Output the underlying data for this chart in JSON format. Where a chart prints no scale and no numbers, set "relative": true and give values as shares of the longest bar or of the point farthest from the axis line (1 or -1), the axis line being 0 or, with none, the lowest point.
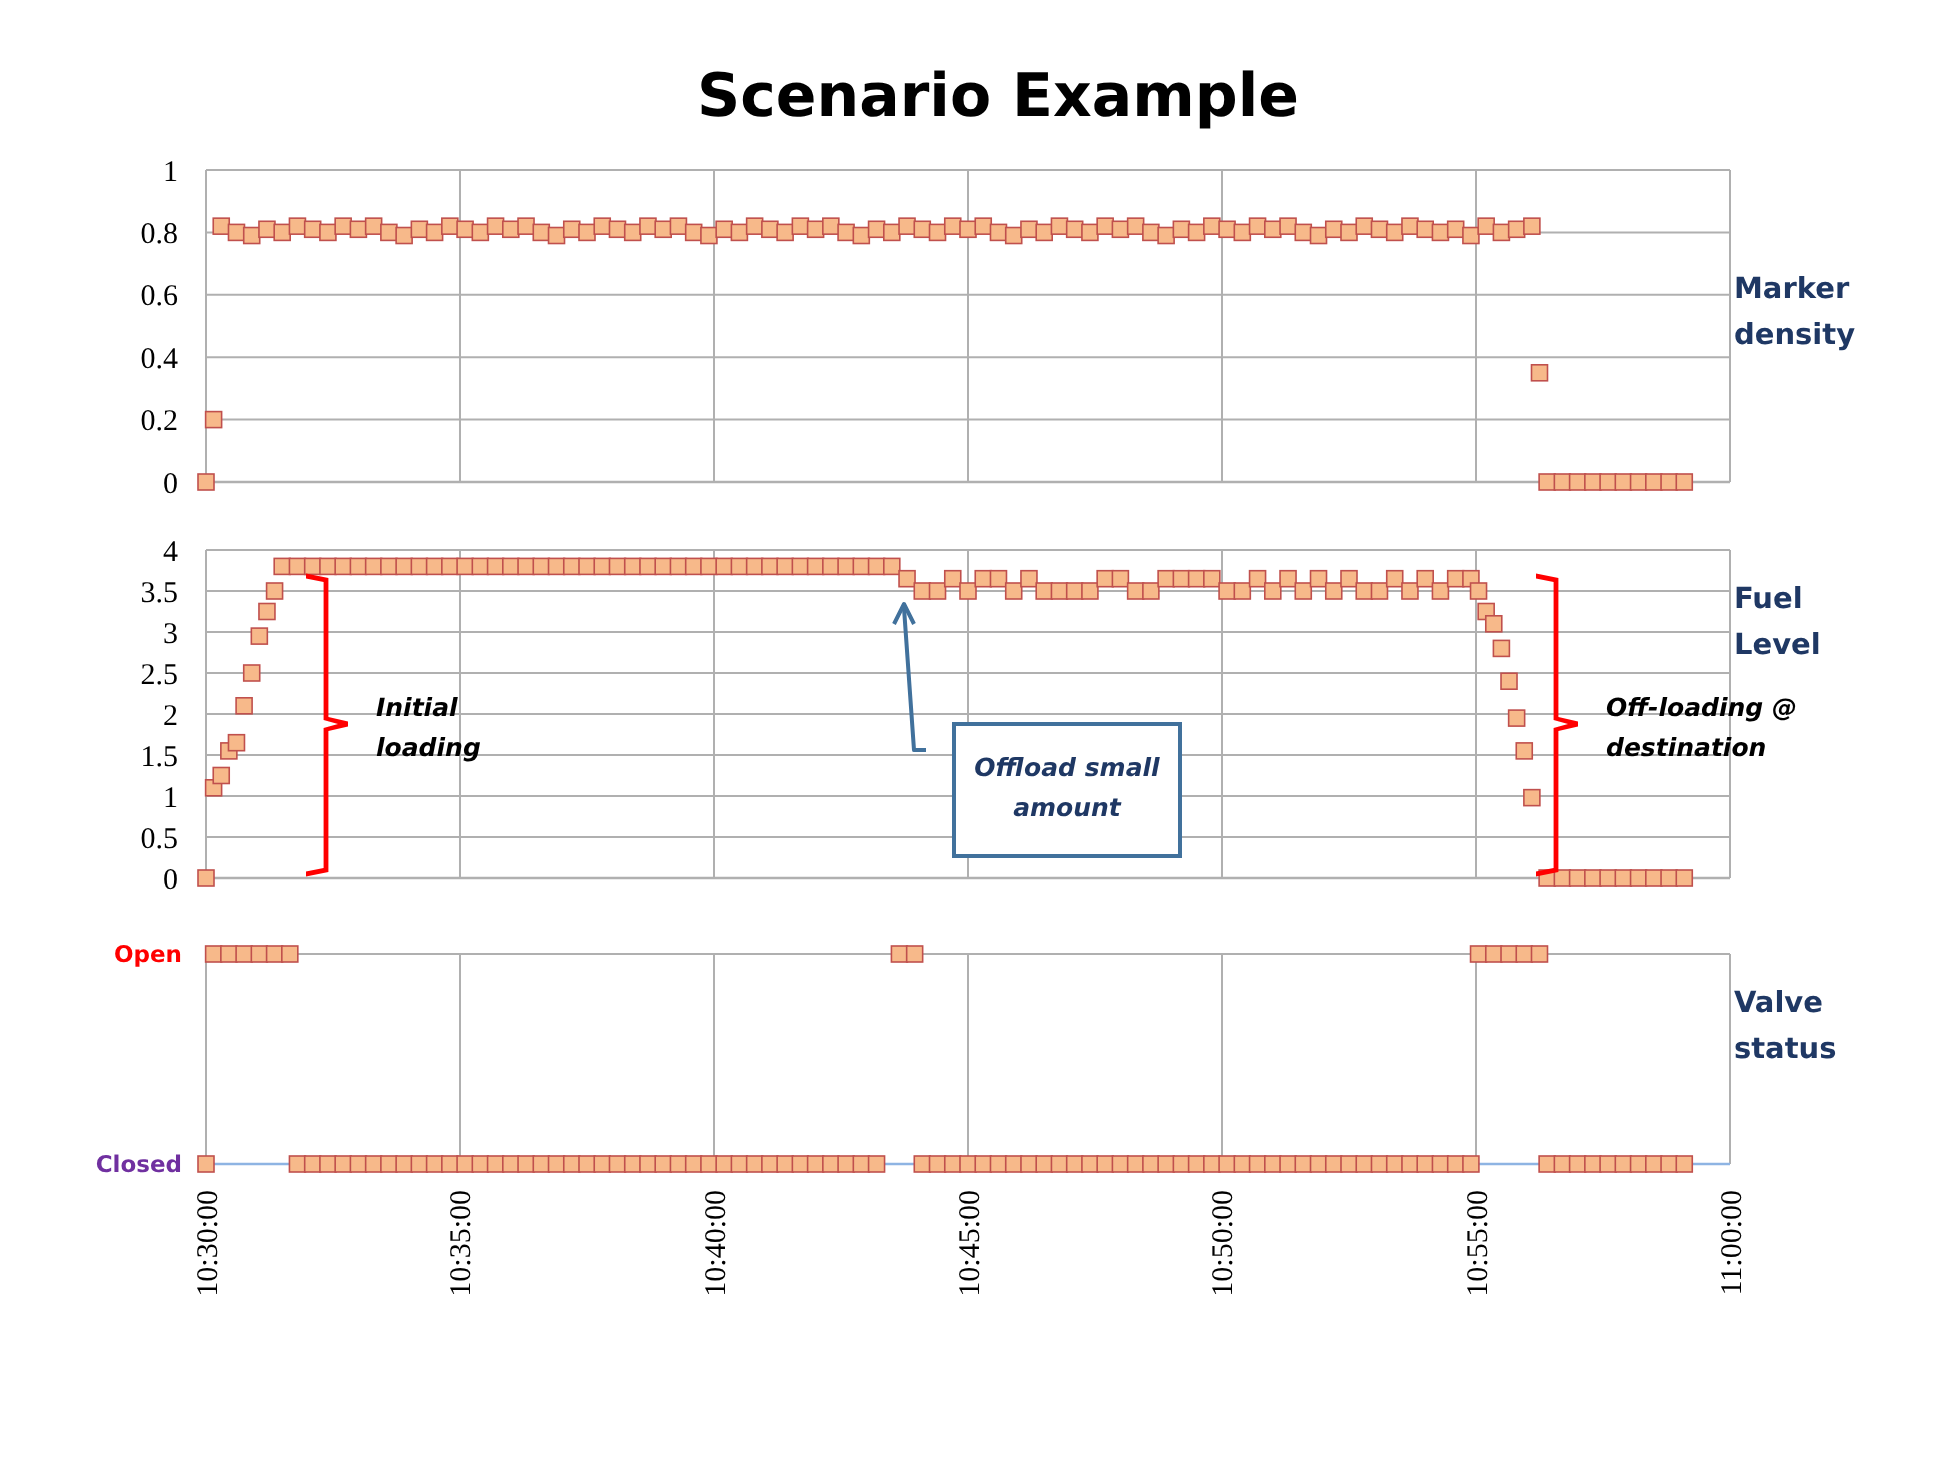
{
  "chart_data": [
    {
      "type": "scatter",
      "title": "Scenario Example",
      "ylabel": "Marker density",
      "marker": "square",
      "grid": true,
      "tick_labels": "y",
      "xlim": [
        10.5,
        11
      ],
      "ylim": [
        0,
        1
      ],
      "xticks": [
        {
          "value": 10.5,
          "label": null
        },
        {
          "value": 10.58333,
          "label": null
        },
        {
          "value": 10.66667,
          "label": null
        },
        {
          "value": 10.75,
          "label": null
        },
        {
          "value": 10.83333,
          "label": null
        },
        {
          "value": 10.91667,
          "label": null
        },
        {
          "value": 11,
          "label": null
        }
      ],
      "yticks": [
        0,
        0.2,
        0.4,
        0.6,
        0.8,
        1
      ],
      "series": [
        {
          "color": "#f7b98a",
          "x": [
            10.5,
            10.5025,
            10.505,
            10.51,
            10.515,
            10.52,
            10.525,
            10.53,
            10.535,
            10.54,
            10.545,
            10.55,
            10.555,
            10.56,
            10.565,
            10.57,
            10.575,
            10.58,
            10.585,
            10.59,
            10.595,
            10.6,
            10.605,
            10.61,
            10.615,
            10.62,
            10.625,
            10.63,
            10.635,
            10.64,
            10.645,
            10.65,
            10.655,
            10.66,
            10.665,
            10.67,
            10.675,
            10.68,
            10.685,
            10.69,
            10.695,
            10.7,
            10.705,
            10.71,
            10.715,
            10.72,
            10.725,
            10.73,
            10.735,
            10.74,
            10.745,
            10.75,
            10.755,
            10.76,
            10.765,
            10.77,
            10.775,
            10.78,
            10.785,
            10.79,
            10.795,
            10.8,
            10.805,
            10.81,
            10.815,
            10.82,
            10.825,
            10.83,
            10.835,
            10.84,
            10.845,
            10.85,
            10.855,
            10.86,
            10.865,
            10.87,
            10.875,
            10.88,
            10.885,
            10.89,
            10.895,
            10.9,
            10.905,
            10.91,
            10.915,
            10.92,
            10.925,
            10.93,
            10.935,
            10.9375,
            10.94,
            10.945,
            10.95,
            10.955,
            10.96,
            10.965,
            10.97,
            10.975,
            10.98,
            10.985
          ],
          "values": [
            0,
            0.2,
            0.82,
            0.8,
            0.79,
            0.81,
            0.8,
            0.82,
            0.81,
            0.8,
            0.82,
            0.81,
            0.82,
            0.8,
            0.79,
            0.81,
            0.8,
            0.82,
            0.81,
            0.8,
            0.82,
            0.81,
            0.82,
            0.8,
            0.79,
            0.81,
            0.8,
            0.82,
            0.81,
            0.8,
            0.82,
            0.81,
            0.82,
            0.8,
            0.79,
            0.81,
            0.8,
            0.82,
            0.81,
            0.8,
            0.82,
            0.81,
            0.82,
            0.8,
            0.79,
            0.81,
            0.8,
            0.82,
            0.81,
            0.8,
            0.82,
            0.81,
            0.82,
            0.8,
            0.79,
            0.81,
            0.8,
            0.82,
            0.81,
            0.8,
            0.82,
            0.81,
            0.82,
            0.8,
            0.79,
            0.81,
            0.8,
            0.82,
            0.81,
            0.8,
            0.82,
            0.81,
            0.82,
            0.8,
            0.79,
            0.81,
            0.8,
            0.82,
            0.81,
            0.8,
            0.82,
            0.81,
            0.8,
            0.81,
            0.79,
            0.82,
            0.8,
            0.81,
            0.82,
            0.35,
            0,
            0,
            0,
            0,
            0,
            0,
            0,
            0,
            0,
            0
          ]
        }
      ]
    },
    {
      "type": "scatter",
      "ylabel": "Fuel Level",
      "marker": "square",
      "grid": true,
      "tick_labels": "y",
      "xlim": [
        10.5,
        11
      ],
      "ylim": [
        0,
        4
      ],
      "xticks": [
        {
          "value": 10.5,
          "label": null
        },
        {
          "value": 10.58333,
          "label": null
        },
        {
          "value": 10.66667,
          "label": null
        },
        {
          "value": 10.75,
          "label": null
        },
        {
          "value": 10.83333,
          "label": null
        },
        {
          "value": 10.91667,
          "label": null
        },
        {
          "value": 11,
          "label": null
        }
      ],
      "yticks": [
        0,
        0.5,
        1,
        1.5,
        2,
        2.5,
        3,
        3.5,
        4
      ],
      "annotations": [
        "Initial loading",
        "Offload small amount",
        "Off-loading @ destination"
      ],
      "series": [
        {
          "color": "#f7b98a",
          "x": [
            10.5,
            10.5025,
            10.505,
            10.5075,
            10.51,
            10.5125,
            10.515,
            10.5175,
            10.52,
            10.5225,
            10.525,
            10.53,
            10.535,
            10.54,
            10.545,
            10.55,
            10.555,
            10.56,
            10.565,
            10.57,
            10.575,
            10.58,
            10.585,
            10.59,
            10.595,
            10.6,
            10.605,
            10.61,
            10.615,
            10.62,
            10.625,
            10.63,
            10.635,
            10.64,
            10.645,
            10.65,
            10.655,
            10.66,
            10.665,
            10.67,
            10.675,
            10.68,
            10.685,
            10.69,
            10.695,
            10.7,
            10.705,
            10.71,
            10.715,
            10.72,
            10.725,
            10.73,
            10.735,
            10.74,
            10.745,
            10.75,
            10.755,
            10.76,
            10.765,
            10.77,
            10.775,
            10.78,
            10.785,
            10.79,
            10.795,
            10.8,
            10.805,
            10.81,
            10.815,
            10.82,
            10.825,
            10.83,
            10.835,
            10.84,
            10.845,
            10.85,
            10.855,
            10.86,
            10.865,
            10.87,
            10.875,
            10.88,
            10.885,
            10.89,
            10.895,
            10.9,
            10.905,
            10.91,
            10.915,
            10.9175,
            10.92,
            10.9225,
            10.925,
            10.9275,
            10.93,
            10.9325,
            10.935,
            10.94,
            10.945,
            10.95,
            10.955,
            10.96,
            10.965,
            10.97,
            10.975,
            10.98,
            10.985
          ],
          "values": [
            0,
            1.1,
            1.25,
            1.55,
            1.65,
            2.1,
            2.5,
            2.95,
            3.25,
            3.5,
            3.8,
            3.8,
            3.8,
            3.8,
            3.8,
            3.8,
            3.8,
            3.8,
            3.8,
            3.8,
            3.8,
            3.8,
            3.8,
            3.8,
            3.8,
            3.8,
            3.8,
            3.8,
            3.8,
            3.8,
            3.8,
            3.8,
            3.8,
            3.8,
            3.8,
            3.8,
            3.8,
            3.8,
            3.8,
            3.8,
            3.8,
            3.8,
            3.8,
            3.8,
            3.8,
            3.8,
            3.8,
            3.8,
            3.8,
            3.8,
            3.8,
            3.65,
            3.5,
            3.5,
            3.65,
            3.5,
            3.65,
            3.65,
            3.5,
            3.65,
            3.5,
            3.5,
            3.5,
            3.5,
            3.65,
            3.65,
            3.5,
            3.5,
            3.65,
            3.65,
            3.65,
            3.65,
            3.5,
            3.5,
            3.65,
            3.5,
            3.65,
            3.5,
            3.65,
            3.5,
            3.65,
            3.5,
            3.5,
            3.65,
            3.5,
            3.65,
            3.5,
            3.65,
            3.65,
            3.5,
            3.25,
            3.1,
            2.8,
            2.4,
            1.95,
            1.55,
            0.98,
            0,
            0,
            0,
            0,
            0,
            0,
            0,
            0,
            0,
            0
          ]
        }
      ]
    },
    {
      "type": "scatter",
      "ylabel": "Valve status",
      "marker": "square",
      "grid": true,
      "relative": true,
      "xlim": [
        10.5,
        11
      ],
      "y_categories": [
        "Open",
        "Closed"
      ],
      "xticks": [
        {
          "value": 10.5,
          "label": "10:30:00"
        },
        {
          "value": 10.58333,
          "label": "10:35:00"
        },
        {
          "value": 10.66667,
          "label": "10:40:00"
        },
        {
          "value": 10.75,
          "label": "10:45:00"
        },
        {
          "value": 10.83333,
          "label": "10:50:00"
        },
        {
          "value": 10.91667,
          "label": "10:55:00"
        },
        {
          "value": 11,
          "label": "11:00:00"
        }
      ],
      "series": [
        {
          "color": "#f7b98a",
          "x": [
            10.5,
            10.5025,
            10.5075,
            10.5125,
            10.5175,
            10.5225,
            10.5275,
            10.53,
            10.535,
            10.54,
            10.545,
            10.55,
            10.555,
            10.56,
            10.565,
            10.57,
            10.575,
            10.58,
            10.585,
            10.59,
            10.595,
            10.6,
            10.605,
            10.61,
            10.615,
            10.62,
            10.625,
            10.63,
            10.635,
            10.64,
            10.645,
            10.65,
            10.655,
            10.66,
            10.665,
            10.67,
            10.675,
            10.68,
            10.685,
            10.69,
            10.695,
            10.7,
            10.705,
            10.71,
            10.715,
            10.72,
            10.7275,
            10.7325,
            10.735,
            10.74,
            10.745,
            10.75,
            10.755,
            10.76,
            10.765,
            10.77,
            10.775,
            10.78,
            10.785,
            10.79,
            10.795,
            10.8,
            10.805,
            10.81,
            10.815,
            10.82,
            10.825,
            10.83,
            10.835,
            10.84,
            10.845,
            10.85,
            10.855,
            10.86,
            10.865,
            10.87,
            10.875,
            10.88,
            10.885,
            10.89,
            10.895,
            10.9,
            10.905,
            10.91,
            10.915,
            10.9175,
            10.9225,
            10.9275,
            10.9325,
            10.9375,
            10.94,
            10.945,
            10.95,
            10.955,
            10.96,
            10.965,
            10.97,
            10.975,
            10.98,
            10.985
          ],
          "values": [
            0,
            1,
            1,
            1,
            1,
            1,
            1,
            0,
            0,
            0,
            0,
            0,
            0,
            0,
            0,
            0,
            0,
            0,
            0,
            0,
            0,
            0,
            0,
            0,
            0,
            0,
            0,
            0,
            0,
            0,
            0,
            0,
            0,
            0,
            0,
            0,
            0,
            0,
            0,
            0,
            0,
            0,
            0,
            0,
            0,
            0,
            1,
            1,
            0,
            0,
            0,
            0,
            0,
            0,
            0,
            0,
            0,
            0,
            0,
            0,
            0,
            0,
            0,
            0,
            0,
            0,
            0,
            0,
            0,
            0,
            0,
            0,
            0,
            0,
            0,
            0,
            0,
            0,
            0,
            0,
            0,
            0,
            0,
            0,
            0,
            1,
            1,
            1,
            1,
            1,
            0,
            0,
            0,
            0,
            0,
            0,
            0,
            0,
            0,
            0
          ]
        }
      ]
    }
  ]
}
